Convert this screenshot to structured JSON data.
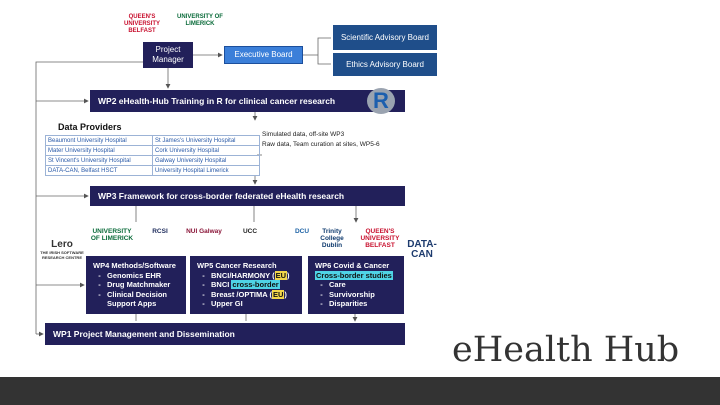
{
  "top_logos": [
    {
      "text": "QUEEN'S UNIVERSITY BELFAST",
      "color": "#c8102e"
    },
    {
      "text": "UNIVERSITY OF LIMERICK",
      "color": "#0a6b3a"
    }
  ],
  "governance": {
    "project_manager": "Project Manager",
    "executive_board": "Executive Board",
    "scientific_advisory_board": "Scientific Advisory Board",
    "ethics_advisory_board": "Ethics Advisory Board"
  },
  "wp2": {
    "title": "WP2 eHealth-Hub Training in R for clinical cancer research",
    "logo": "R"
  },
  "data_providers": {
    "title": "Data Providers",
    "rows": [
      [
        "Beaumont University Hospital",
        "St James's University Hospital"
      ],
      [
        "Mater University Hospital",
        "Cork University Hospital"
      ],
      [
        "St Vincent's University Hospital",
        "Galway University Hospital"
      ],
      [
        "DATA-CAN, Belfast HSCT",
        "University Hospital Limerick"
      ]
    ]
  },
  "data_notes": [
    "Simulated data, off-site WP3",
    "Raw data, Team curation at sites, WP5-6"
  ],
  "wp3": "WP3  Framework for cross-border federated eHealth research",
  "partner_logos": [
    {
      "text": "Lero",
      "subtext": "THE IRISH SOFTWARE RESEARCH CENTRE",
      "color": "#333333"
    },
    {
      "text": "UNIVERSITY OF LIMERICK",
      "color": "#0a6b3a"
    },
    {
      "text": "RCSI",
      "color": "#1d2b5c"
    },
    {
      "text": "NUI Galway",
      "color": "#8a1538"
    },
    {
      "text": "UCC",
      "color": "#222222"
    },
    {
      "text": "DCU",
      "color": "#1e63a6"
    },
    {
      "text": "Trinity College Dublin",
      "color": "#0e3a6e"
    },
    {
      "text": "QUEEN'S UNIVERSITY BELFAST",
      "color": "#c8102e"
    },
    {
      "text": "DATA-CAN",
      "color": "#1d3b6e"
    }
  ],
  "wp_boxes": [
    {
      "title": "WP4 Methods/Software",
      "items": [
        [
          "Genomics EHR"
        ],
        [
          "Drug Matchmaker"
        ],
        [
          "Clinical Decision Support Apps"
        ]
      ]
    },
    {
      "title": "WP5 Cancer Research",
      "items": [
        [
          "BNCI/HARMONY (",
          {
            "text": "EU",
            "highlight": "#f2d64b"
          },
          ")"
        ],
        [
          "BNCI ",
          {
            "text": "cross-border",
            "highlight": "#4fd3e6"
          }
        ],
        [
          "Breast /OPTIMA (",
          {
            "text": "EU",
            "highlight": "#f2d64b"
          },
          ")"
        ],
        [
          "Upper GI"
        ]
      ]
    },
    {
      "title": "WP6 Covid & Cancer",
      "subtitle": {
        "text": "Cross-border studies",
        "highlight": "#4fd3e6"
      },
      "items": [
        [
          "Care"
        ],
        [
          "Survivorship"
        ],
        [
          "Disparities"
        ]
      ]
    }
  ],
  "wp1": "WP1  Project Management and Dissemination",
  "title": "eHealth Hub"
}
